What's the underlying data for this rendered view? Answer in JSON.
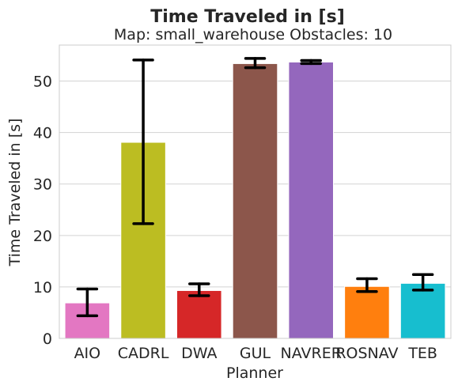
{
  "chart_data": {
    "type": "bar",
    "title": "Time Traveled in [s]",
    "subtitle": "Map: small_warehouse Obstacles: 10",
    "xlabel": "Planner",
    "ylabel": "Time Traveled in [s]",
    "ylim": [
      0,
      57
    ],
    "yticks": [
      0,
      10,
      20,
      30,
      40,
      50
    ],
    "grid": "horizontal",
    "categories": [
      "AIO",
      "CADRL",
      "DWA",
      "GUL",
      "NAVRER",
      "ROSNAV",
      "TEB"
    ],
    "values": [
      6.9,
      38.1,
      9.3,
      53.4,
      53.7,
      10.1,
      10.7
    ],
    "error_low": [
      4.4,
      22.3,
      8.3,
      52.6,
      53.4,
      9.1,
      9.4
    ],
    "error_high": [
      9.6,
      54.1,
      10.6,
      54.4,
      54.0,
      11.6,
      12.4
    ],
    "colors": [
      "#e377c2",
      "#bcbd22",
      "#d62728",
      "#8c564b",
      "#9467bd",
      "#ff7f0e",
      "#17becf"
    ]
  }
}
